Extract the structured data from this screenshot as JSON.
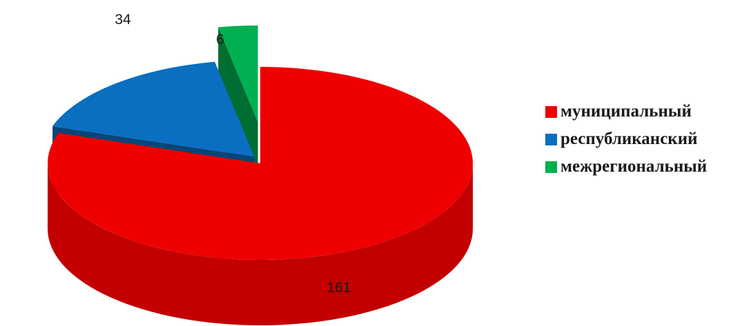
{
  "chart_data": {
    "type": "pie",
    "title": "",
    "categories": [
      "муниципальный",
      "республиканский",
      "межрегиональный"
    ],
    "values": [
      161,
      34,
      6
    ],
    "colors": [
      "#ee0000",
      "#0a6fc1",
      "#00b050"
    ],
    "data_labels": [
      "161",
      "34",
      "6"
    ],
    "three_d": true,
    "exploded": true,
    "legend_position": "right"
  }
}
